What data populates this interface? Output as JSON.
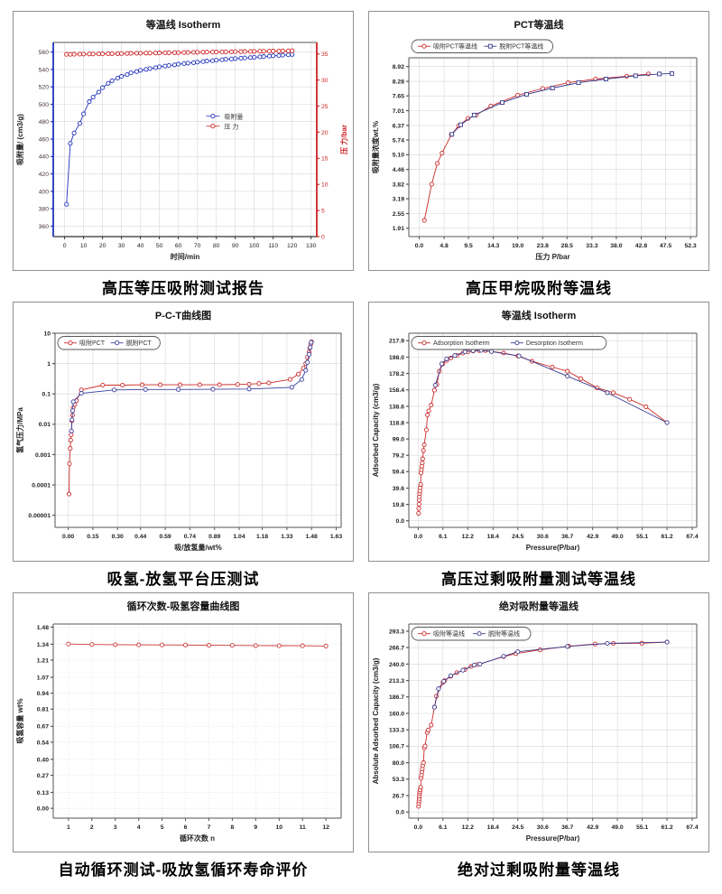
{
  "chart_data": [
    {
      "type": "scatter",
      "title": "等温线 Isotherm",
      "caption": "高压等压吸附测试报告",
      "xlabel": "时间/min",
      "ylabel": "吸附量/ (cm3/g)",
      "y2label": "压 力/bar",
      "xlim": [
        -6,
        133
      ],
      "ylim": [
        348,
        571
      ],
      "y2lim": [
        0,
        37.2
      ],
      "xticks": [
        "0",
        "10",
        "20",
        "30",
        "40",
        "50",
        "60",
        "70",
        "80",
        "90",
        "100",
        "110",
        "120",
        "130"
      ],
      "yticks": [
        "360",
        "380",
        "400",
        "420",
        "440",
        "460",
        "480",
        "500",
        "520",
        "540",
        "560"
      ],
      "y2ticks": [
        "0",
        "5",
        "10",
        "15",
        "20",
        "25",
        "30",
        "35"
      ],
      "grid": true,
      "axes": {
        "left": "#2233bb",
        "right": "#cc2222",
        "bottom": "#333333",
        "top": "#555555"
      },
      "tick_label_colors": {
        "x": "#222222",
        "y": "#443333",
        "y2": "#cc2222"
      },
      "legend": {
        "pos": [
          0.58,
          0.38
        ]
      },
      "series": [
        {
          "name": "吸附量",
          "color": "#2233bb",
          "marker": "circle",
          "x": [
            1,
            3,
            5,
            8,
            10,
            13,
            15,
            18,
            20,
            23,
            25,
            28,
            30,
            33,
            35,
            38,
            40,
            43,
            45,
            48,
            50,
            53,
            55,
            58,
            60,
            63,
            65,
            68,
            70,
            73,
            75,
            78,
            80,
            83,
            85,
            88,
            90,
            93,
            95,
            98,
            100,
            103,
            105,
            108,
            110,
            113,
            115,
            118,
            120
          ],
          "y": [
            385,
            455,
            467,
            478,
            489,
            503,
            508,
            514,
            519,
            524,
            527,
            530,
            532,
            534,
            536,
            537.5,
            539,
            540,
            541,
            542,
            543,
            543.8,
            544.5,
            545.2,
            546,
            546.6,
            547.2,
            547.8,
            548.4,
            549,
            549.6,
            550.1,
            550.6,
            551.1,
            551.6,
            552,
            552.4,
            552.8,
            553.2,
            553.6,
            554,
            554.4,
            554.8,
            555.2,
            555.6,
            556,
            556.4,
            556.8,
            557.2
          ]
        },
        {
          "name": "压 力",
          "color": "#cc2222",
          "marker": "circle",
          "y2": true,
          "x": [
            1,
            3,
            5,
            8,
            10,
            13,
            15,
            18,
            20,
            23,
            25,
            28,
            30,
            33,
            35,
            38,
            40,
            43,
            45,
            48,
            50,
            53,
            55,
            58,
            60,
            63,
            65,
            68,
            70,
            73,
            75,
            78,
            80,
            83,
            85,
            88,
            90,
            93,
            95,
            98,
            100,
            103,
            105,
            108,
            110,
            113,
            115,
            118,
            120
          ],
          "y": [
            34.91,
            34.92,
            34.93,
            34.95,
            34.96,
            34.98,
            34.99,
            35.0,
            35.02,
            35.03,
            35.05,
            35.06,
            35.07,
            35.09,
            35.1,
            35.12,
            35.13,
            35.15,
            35.16,
            35.18,
            35.19,
            35.21,
            35.22,
            35.24,
            35.25,
            35.27,
            35.28,
            35.3,
            35.31,
            35.33,
            35.34,
            35.35,
            35.37,
            35.38,
            35.4,
            35.41,
            35.43,
            35.44,
            35.45,
            35.47,
            35.48,
            35.5,
            35.51,
            35.53,
            35.54,
            35.56,
            35.57,
            35.59,
            35.6
          ]
        }
      ]
    },
    {
      "type": "scatter",
      "title": "PCT等温线",
      "caption": "高压甲烷吸附等温线",
      "xlabel": "压力 P/bar",
      "ylabel": "吸附量浓度wt.%",
      "xlim": [
        -2,
        53.5
      ],
      "ylim": [
        1.55,
        9.3
      ],
      "xticks": [
        "0.0",
        "4.8",
        "9.5",
        "14.3",
        "19.0",
        "23.8",
        "28.5",
        "33.3",
        "38.0",
        "42.8",
        "47.5",
        "52.3"
      ],
      "yticks": [
        "1.91",
        "2.55",
        "3.19",
        "3.82",
        "4.46",
        "5.10",
        "5.74",
        "6.37",
        "7.01",
        "7.65",
        "8.28",
        "8.92"
      ],
      "grid": true,
      "bold_ticks": true,
      "legend": {
        "boxed": true,
        "inside": false
      },
      "series": [
        {
          "name": "吸附PCT等温线",
          "color": "#cc2a2a",
          "marker": "circle",
          "x": [
            1.0,
            2.4,
            3.5,
            4.4,
            6.2,
            7.6,
            9.4,
            11.0,
            13.8,
            19.0,
            23.8,
            28.7,
            34.0,
            40.0,
            44.2
          ],
          "y": [
            2.25,
            3.82,
            4.72,
            5.17,
            5.97,
            6.35,
            6.67,
            6.82,
            7.21,
            7.68,
            7.97,
            8.22,
            8.38,
            8.5,
            8.6
          ]
        },
        {
          "name": "脱附PCT等温线",
          "color": "#333a8f",
          "marker": "square",
          "x": [
            6.3,
            8.0,
            10.6,
            16.0,
            20.7,
            25.7,
            30.7,
            36.0,
            41.7,
            46.3,
            48.7
          ],
          "y": [
            5.98,
            6.4,
            6.82,
            7.36,
            7.72,
            7.99,
            8.22,
            8.38,
            8.52,
            8.6,
            8.62
          ]
        }
      ]
    },
    {
      "type": "scatter",
      "title": "P-C-T曲线图",
      "caption": "吸氢-放氢平台压测试",
      "xlabel": "吸/放氢量/wt%",
      "ylabel": "氢气压力/MPa",
      "yscale": "log",
      "xlim": [
        -0.08,
        1.66
      ],
      "ylim": [
        4e-06,
        10
      ],
      "xticks": [
        "0.00",
        "0.15",
        "0.30",
        "0.44",
        "0.59",
        "0.74",
        "0.89",
        "1.04",
        "1.18",
        "1.33",
        "1.48",
        "1.63"
      ],
      "yticks": [
        "10",
        "1",
        "0.1",
        "0.01",
        "0.001",
        "0.0001",
        "0.00001"
      ],
      "grid": true,
      "bold_ticks": true,
      "legend": {
        "boxed": true,
        "inside": true
      },
      "series": [
        {
          "name": "吸附PCT",
          "color": "#cc2a2a",
          "marker": "circle",
          "x": [
            0.005,
            0.008,
            0.012,
            0.015,
            0.018,
            0.022,
            0.026,
            0.03,
            0.04,
            0.05,
            0.08,
            0.21,
            0.33,
            0.45,
            0.56,
            0.68,
            0.8,
            0.92,
            1.03,
            1.1,
            1.16,
            1.22,
            1.35,
            1.4,
            1.43,
            1.445,
            1.455,
            1.465,
            1.47,
            1.475,
            1.48
          ],
          "y": [
            5e-05,
            0.0005,
            0.0016,
            0.003,
            0.0045,
            0.013,
            0.02,
            0.035,
            0.045,
            0.06,
            0.135,
            0.195,
            0.195,
            0.2,
            0.2,
            0.2,
            0.2,
            0.2,
            0.205,
            0.21,
            0.22,
            0.23,
            0.3,
            0.45,
            0.7,
            1.0,
            1.6,
            2.4,
            3.3,
            4.3,
            5.2
          ]
        },
        {
          "name": "脱附PCT",
          "color": "#3a3fa0",
          "marker": "circle",
          "x": [
            0.02,
            0.023,
            0.027,
            0.031,
            0.08,
            0.28,
            0.47,
            0.67,
            0.88,
            1.1,
            1.36,
            1.42,
            1.445,
            1.455,
            1.465,
            1.472,
            1.478
          ],
          "y": [
            0.006,
            0.014,
            0.028,
            0.055,
            0.105,
            0.135,
            0.14,
            0.14,
            0.142,
            0.145,
            0.165,
            0.3,
            0.6,
            1.1,
            2.0,
            3.4,
            5.0
          ]
        }
      ]
    },
    {
      "type": "scatter",
      "title": "等温线 Isotherm",
      "caption": "高压过剩吸附量测试等温线",
      "xlabel": "Pressure(P/bar)",
      "ylabel": "Adsorbed Capacity (cm3/g)",
      "xlim": [
        -2.3,
        68.5
      ],
      "ylim": [
        -8,
        227
      ],
      "xticks": [
        "0.0",
        "6.1",
        "12.2",
        "18.4",
        "24.5",
        "30.6",
        "36.7",
        "42.9",
        "49.0",
        "55.1",
        "61.2",
        "67.4"
      ],
      "yticks": [
        "0.0",
        "19.8",
        "39.6",
        "59.4",
        "79.2",
        "99.0",
        "118.8",
        "138.6",
        "158.4",
        "178.2",
        "198.0",
        "217.9"
      ],
      "grid": true,
      "bold_ticks": true,
      "legend": {
        "boxed": true,
        "inside": true
      },
      "series": [
        {
          "name": "Adsorption Isotherm",
          "color": "#cc2a2a",
          "marker": "circle",
          "x": [
            0.1,
            0.15,
            0.2,
            0.25,
            0.3,
            0.35,
            0.4,
            0.5,
            0.6,
            0.7,
            0.8,
            0.9,
            1.0,
            1.1,
            1.3,
            1.5,
            2.0,
            2.3,
            2.6,
            3.2,
            4.0,
            4.6,
            5.2,
            6.1,
            7.0,
            8.0,
            9.5,
            11.0,
            12.2,
            13.5,
            15.0,
            16.5,
            21.0,
            24.5,
            28.0,
            33.0,
            36.7,
            40.0,
            44.0,
            48.0,
            52.0,
            56.0,
            61.2
          ],
          "y": [
            9,
            15,
            20,
            25,
            29,
            33,
            36,
            40,
            44,
            58,
            62,
            66,
            70,
            75,
            85,
            92,
            110,
            128,
            133,
            140,
            158,
            165,
            181,
            190,
            194,
            197,
            200,
            203,
            204.5,
            205.5,
            206,
            206,
            203,
            199.5,
            193,
            186,
            181,
            172,
            161,
            155,
            147,
            138,
            118.8
          ]
        },
        {
          "name": "Desorption Isotherm",
          "color": "#3d3d8f",
          "marker": "circle",
          "x": [
            4.2,
            5.8,
            7.0,
            9.0,
            11.5,
            13.5,
            15.5,
            18.0,
            24.8,
            36.7,
            46.5,
            61.2
          ],
          "y": [
            164,
            190,
            196,
            200,
            204.5,
            205.8,
            206.2,
            204.8,
            199.5,
            175,
            155,
            118.8
          ]
        }
      ]
    },
    {
      "type": "scatter",
      "title": "循环次数-吸氢容量曲线图",
      "caption": "自动循环测试-吸放氢循环寿命评价",
      "xlabel": "循环次数 n",
      "ylabel": "吸氢容量 wt%",
      "xlim": [
        0.35,
        12.65
      ],
      "ylim": [
        -0.08,
        1.505
      ],
      "xticks": [
        "1",
        "2",
        "3",
        "4",
        "5",
        "6",
        "7",
        "8",
        "9",
        "10",
        "11",
        "12"
      ],
      "yticks": [
        "0.00",
        "0.13",
        "0.27",
        "0.40",
        "0.54",
        "0.67",
        "0.81",
        "0.94",
        "1.07",
        "1.21",
        "1.34",
        "1.48"
      ],
      "grid": true,
      "grid_dash": "1,2",
      "bold_ticks": true,
      "series": [
        {
          "name": "吸氢容量",
          "color": "#cc3a3a",
          "marker": "circle",
          "x": [
            1,
            2,
            3,
            4,
            5,
            6,
            7,
            8,
            9,
            10,
            11,
            12
          ],
          "y": [
            1.341,
            1.338,
            1.336,
            1.335,
            1.334,
            1.333,
            1.331,
            1.33,
            1.329,
            1.328,
            1.327,
            1.325
          ]
        }
      ]
    },
    {
      "type": "scatter",
      "title": "绝对吸附量等温线",
      "caption": "绝对过剩吸附量等温线",
      "xlabel": "Pressure(P/bar)",
      "ylabel": "Absolute Adsorbed Capacity (cm3/g)",
      "xlim": [
        -2.3,
        68.5
      ],
      "ylim": [
        -10,
        305
      ],
      "xticks": [
        "0.0",
        "6.1",
        "12.2",
        "18.4",
        "24.5",
        "30.6",
        "36.7",
        "42.9",
        "49.0",
        "55.1",
        "61.2",
        "67.4"
      ],
      "yticks": [
        "0.0",
        "26.7",
        "53.3",
        "80.0",
        "106.7",
        "133.3",
        "160.0",
        "186.7",
        "213.3",
        "240.0",
        "266.7",
        "293.3"
      ],
      "grid": true,
      "bold_ticks": true,
      "legend": {
        "boxed": true,
        "inside": true
      },
      "series": [
        {
          "name": "吸附等温线",
          "color": "#cc2a2a",
          "marker": "circle",
          "x": [
            0.1,
            0.15,
            0.2,
            0.25,
            0.3,
            0.35,
            0.4,
            0.5,
            0.6,
            0.7,
            0.8,
            0.9,
            1.0,
            1.1,
            1.3,
            1.5,
            1.7,
            2.2,
            2.5,
            3.2,
            4.0,
            4.5,
            6.1,
            6.5,
            8.0,
            9.5,
            11.5,
            13.0,
            14.5,
            21.0,
            24.0,
            30.0,
            37.0,
            43.5,
            48.0,
            55.0,
            61.2
          ],
          "y": [
            9,
            14,
            18,
            22,
            26,
            30,
            33,
            36,
            40,
            55,
            60,
            65,
            70,
            75,
            80,
            104,
            107,
            129,
            133,
            141,
            170,
            188,
            210,
            213,
            220,
            226,
            231,
            236,
            239,
            252,
            257,
            263,
            269,
            272.5,
            273.5,
            273.8,
            275.5
          ]
        },
        {
          "name": "脱附等温线",
          "color": "#3d3d8f",
          "marker": "circle",
          "x": [
            4.0,
            5.0,
            6.3,
            8.0,
            11.0,
            13.8,
            15.2,
            21.0,
            24.5,
            36.7,
            46.5,
            61.2
          ],
          "y": [
            170,
            200,
            212,
            221,
            230,
            238.5,
            240,
            252.5,
            260,
            268.5,
            273.5,
            275.5
          ]
        }
      ]
    }
  ]
}
